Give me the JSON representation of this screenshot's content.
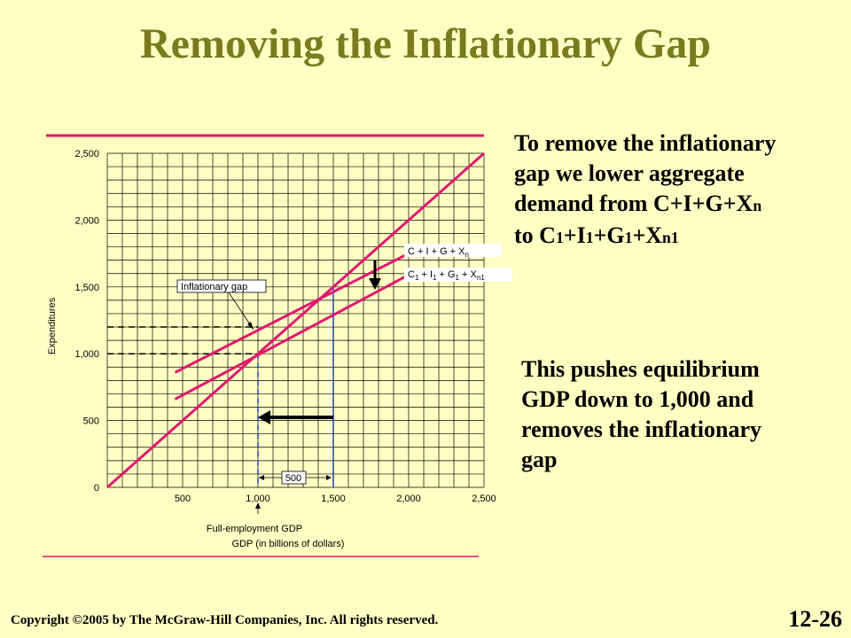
{
  "title": "Removing the Inflationary Gap",
  "explanation": {
    "p1": {
      "line1": "To remove the inflationary",
      "line2": "gap we lower aggregate",
      "line3_main": "demand from C+I+G+X",
      "line3_sub": "n",
      "line4": [
        {
          "text": "to C",
          "sub": false
        },
        {
          "text": "1",
          "sub": true
        },
        {
          "text": "+I",
          "sub": false
        },
        {
          "text": "1",
          "sub": true
        },
        {
          "text": "+G",
          "sub": false
        },
        {
          "text": "1",
          "sub": true
        },
        {
          "text": "+X",
          "sub": false
        },
        {
          "text": "n1",
          "sub": true
        }
      ]
    },
    "p2": {
      "line1": "This pushes equilibrium",
      "line2": "GDP down to 1,000 and",
      "line3": "removes the inflationary",
      "line4": "gap"
    }
  },
  "footer": {
    "copyright_symbol": "©",
    "copyright": "Copyright",
    "copyright_rest": "2005 by The McGraw-Hill Companies, Inc.  All rights reserved.",
    "slide_number": "12-26"
  },
  "chart_data": {
    "type": "line",
    "xlabel": "GDP (in billions of dollars)",
    "ylabel": "Expenditures",
    "xlim": [
      0,
      2500
    ],
    "ylim": [
      0,
      2500
    ],
    "x_ticks": [
      500,
      1000,
      1500,
      2000,
      2500
    ],
    "x_tick_labels": [
      "500",
      "1,000",
      "1,500",
      "2,000",
      "2,500"
    ],
    "y_ticks": [
      0,
      500,
      1000,
      1500,
      2000,
      2500
    ],
    "y_tick_labels": [
      "0",
      "500",
      "1,000",
      "1,500",
      "2,000",
      "2,500"
    ],
    "grid": true,
    "series": [
      {
        "name": "45° line",
        "x": [
          0,
          2500
        ],
        "y": [
          0,
          2500
        ],
        "color": "#E0186C"
      },
      {
        "name": "C + I + G + Xn",
        "x": [
          450,
          2000
        ],
        "y": [
          860,
          1750
        ],
        "color": "#E0186C"
      },
      {
        "name": "C1 + I1 + G1 + Xn1",
        "x": [
          450,
          2000
        ],
        "y": [
          660,
          1590
        ],
        "color": "#E0186C"
      }
    ],
    "reference_lines": {
      "dashed_horizontal": [
        1200,
        1000
      ],
      "vertical_at_x": [
        1000,
        1500
      ]
    },
    "annotations": {
      "inflationary_gap_label": "Inflationary gap",
      "gap_width_label": "500",
      "full_employment_label": "Full-employment GDP",
      "legend_top": "C  +  I  +  G  +  X",
      "legend_top_sub": "n",
      "legend_bottom_parts": [
        "C",
        "1",
        "  +  I",
        "1",
        "  +  G",
        "1",
        "  +  X",
        "n1"
      ]
    },
    "colors": {
      "curve": "#E0186C",
      "grid": "#000000",
      "arrow": "#000000",
      "vertical_line": "#2040C0"
    }
  }
}
